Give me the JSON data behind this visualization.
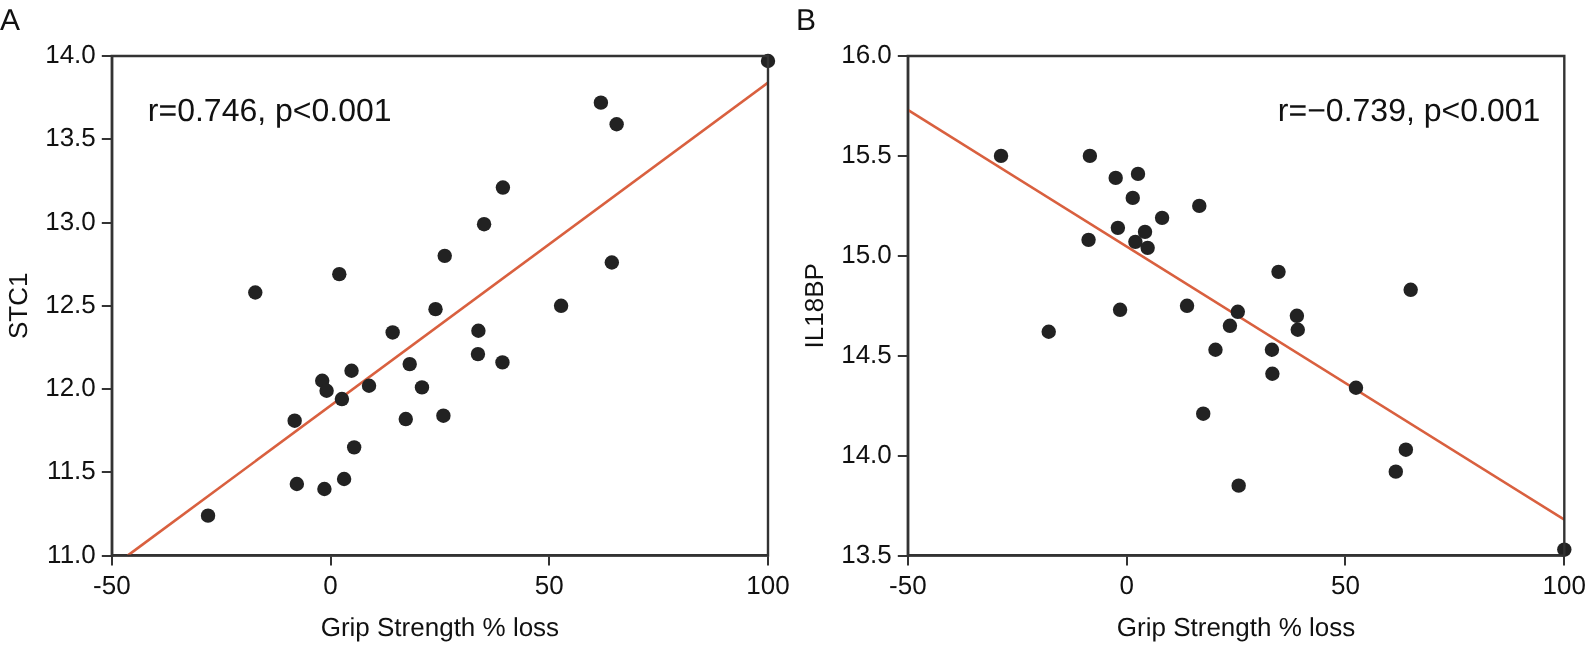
{
  "chart_data": [
    {
      "type": "scatter",
      "title": "A",
      "xlabel": "Grip Strength % loss",
      "ylabel": "STC1",
      "annotations": [
        "r=0.746, p<0.001"
      ],
      "xlim": [
        -50,
        100
      ],
      "xticks": [
        -50,
        0,
        50,
        100
      ],
      "ylim": [
        11,
        14
      ],
      "yticks": [
        {
          "value": 11,
          "label": "11.0"
        },
        {
          "value": 11.5,
          "label": "11.5"
        },
        {
          "value": 12,
          "label": "12.0"
        },
        {
          "value": 12.5,
          "label": "12.5"
        },
        {
          "value": 13,
          "label": "13.0"
        },
        {
          "value": 13.5,
          "label": "13.5"
        },
        {
          "value": 14,
          "label": "14.0"
        }
      ],
      "grid": false,
      "legend": false,
      "marker": "circle",
      "series": [
        {
          "color": "#222222",
          "x": [
            100,
            61.8,
            65.4,
            39.4,
            35.1,
            26.1,
            2.0,
            -17.2,
            64.3,
            52.7,
            24.0,
            14.2,
            33.8,
            33.7,
            39.3,
            18.1,
            4.8,
            -1.9,
            -0.9,
            8.8,
            20.9,
            2.6,
            -8.2,
            17.2,
            25.8,
            5.4,
            -7.7,
            -1.4,
            3.1,
            -28.0
          ],
          "values": [
            13.97,
            13.72,
            13.59,
            13.21,
            12.99,
            12.8,
            12.69,
            12.58,
            12.76,
            12.5,
            12.48,
            12.34,
            12.35,
            12.21,
            12.16,
            12.15,
            12.11,
            12.05,
            11.99,
            12.02,
            12.01,
            11.94,
            11.81,
            11.82,
            11.84,
            11.65,
            11.43,
            11.4,
            11.46,
            11.24
          ]
        },
        {
          "type": "line",
          "color": "#d9603f",
          "marker": "none",
          "x": [
            -46.4,
            100
          ],
          "values": [
            11.0,
            13.84
          ]
        }
      ]
    },
    {
      "type": "scatter",
      "title": "B",
      "xlabel": "Grip Strength % loss",
      "ylabel": "IL18BP",
      "annotations": [
        "r=−0.739, p<0.001"
      ],
      "xlim": [
        -50,
        100
      ],
      "xticks": [
        -50,
        0,
        50,
        100
      ],
      "ylim": [
        13.5,
        16
      ],
      "yticks": [
        {
          "value": 13.5,
          "label": "13.5"
        },
        {
          "value": 14,
          "label": "14.0"
        },
        {
          "value": 14.5,
          "label": "14.5"
        },
        {
          "value": 15,
          "label": "15.0"
        },
        {
          "value": 15.5,
          "label": "15.5"
        },
        {
          "value": 16,
          "label": "16.0"
        }
      ],
      "grid": false,
      "legend": false,
      "marker": "circle",
      "series": [
        {
          "color": "#222222",
          "x": [
            -28.7,
            -8.4,
            -2.5,
            2.6,
            1.4,
            8.1,
            16.6,
            -2.0,
            4.2,
            -8.7,
            2.0,
            4.8,
            34.7,
            64.9,
            13.8,
            -1.5,
            25.4,
            38.9,
            39.1,
            23.6,
            -17.8,
            20.3,
            33.2,
            33.3,
            52.4,
            17.5,
            63.8,
            61.5,
            25.6,
            100
          ],
          "values": [
            15.5,
            15.5,
            15.39,
            15.41,
            15.29,
            15.19,
            15.25,
            15.14,
            15.12,
            15.08,
            15.07,
            15.04,
            14.92,
            14.83,
            14.75,
            14.73,
            14.72,
            14.7,
            14.63,
            14.65,
            14.62,
            14.53,
            14.53,
            14.41,
            14.34,
            14.21,
            14.03,
            13.92,
            13.85,
            13.53
          ]
        },
        {
          "type": "line",
          "color": "#d9603f",
          "marker": "none",
          "x": [
            -50,
            100
          ],
          "values": [
            15.73,
            13.68
          ]
        }
      ]
    }
  ]
}
